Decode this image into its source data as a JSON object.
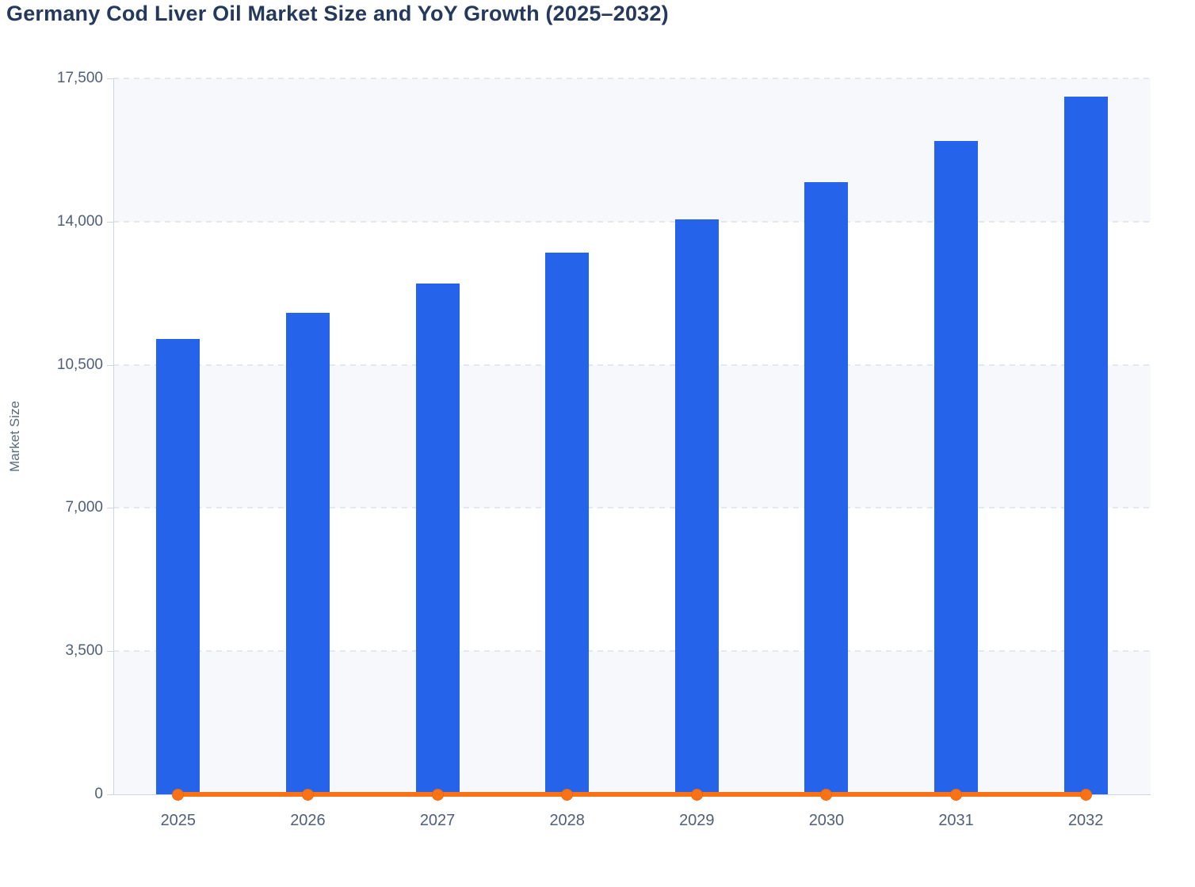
{
  "title": "Germany Cod Liver Oil Market Size and YoY Growth (2025–2032)",
  "chart_data": {
    "type": "combo-bar-line",
    "title": "Germany Cod Liver Oil Market Size and YoY Growth (2025–2032)",
    "xlabel": "",
    "ylabel": "Market Size",
    "categories": [
      "2025",
      "2026",
      "2027",
      "2028",
      "2029",
      "2030",
      "2031",
      "2032"
    ],
    "series": [
      {
        "name": "Market Size",
        "type": "bar",
        "color": "#2563eb",
        "values": [
          11140,
          11770,
          12490,
          13250,
          14060,
          14960,
          15980,
          17050
        ]
      },
      {
        "name": "YoY Growth",
        "type": "line",
        "color": "#f97316",
        "values": [
          0,
          0,
          0,
          0,
          0,
          0,
          0,
          0
        ],
        "note": "line renders flat along the zero baseline with a circular marker at each year"
      }
    ],
    "ylim": [
      0,
      17500
    ],
    "y_tick_values": [
      0,
      3500,
      7000,
      10500,
      14000,
      17500
    ],
    "y_tick_labels": [
      "0",
      "3,500",
      "7,000",
      "10,500",
      "14,000",
      "17,500"
    ],
    "grid": "dashed horizontal gridlines, alternating background bands",
    "legend": "none"
  },
  "colors": {
    "bar": "#2563eb",
    "line": "#f97316",
    "marker_edge": "#ed660e",
    "title_text": "#24395c",
    "tick_text": "#505f78",
    "axis_line": "#ccd5e3",
    "gridline": "#e3e7ee",
    "band_gray": "#f7f8fb",
    "band_white": "#ffffff",
    "background": "#ffffff"
  }
}
